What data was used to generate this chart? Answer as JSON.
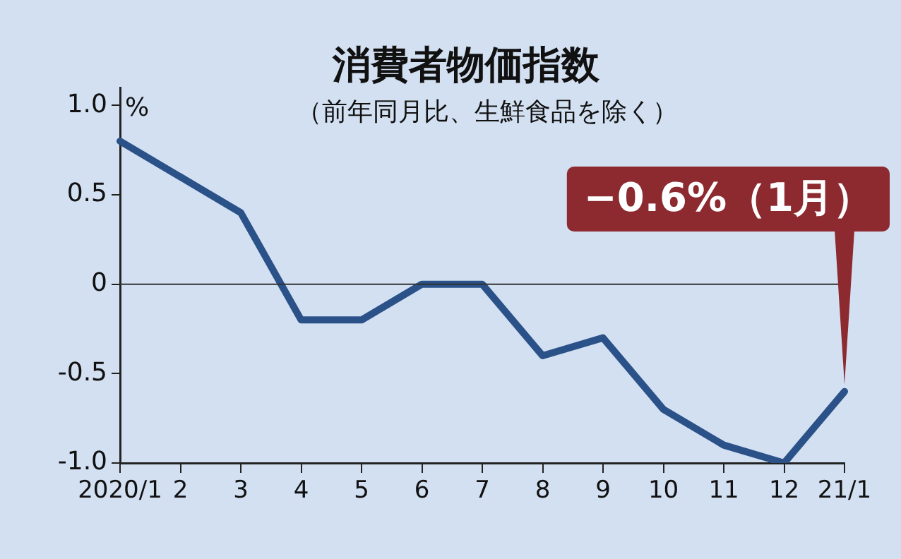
{
  "chart_data": {
    "type": "line",
    "title": "消費者物価指数",
    "subtitle": "（前年同月比、生鮮食品を除く）",
    "ylabel": "%",
    "categories": [
      "2020/1",
      "2",
      "3",
      "4",
      "5",
      "6",
      "7",
      "8",
      "9",
      "10",
      "11",
      "12",
      "21/1"
    ],
    "series": [
      {
        "color": "#2b5189",
        "values": [
          0.8,
          0.6,
          0.4,
          -0.2,
          -0.2,
          0,
          0,
          -0.4,
          -0.3,
          -0.7,
          -0.9,
          -1.0,
          -0.6
        ]
      }
    ],
    "ylim": [
      -1.0,
      1.1
    ],
    "yticks": [
      {
        "value": -1.0,
        "label": "-1.0"
      },
      {
        "value": -0.5,
        "label": "-0.5"
      },
      0,
      {
        "value": 0.5,
        "label": "0.5"
      },
      {
        "value": 1.0,
        "label": "1.0"
      }
    ],
    "ref_lines": [
      {
        "axis": "y",
        "value": 0,
        "color": "#333333"
      }
    ],
    "annotations": [
      {
        "text": "−0.6%（1月）",
        "x": "21/1",
        "y": -0.6
      }
    ],
    "grid": false,
    "legend": false,
    "marker": "none",
    "line_style": "solid"
  }
}
